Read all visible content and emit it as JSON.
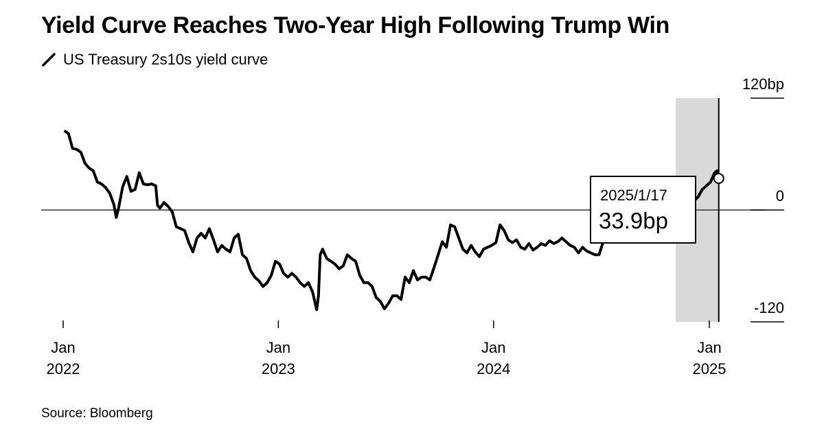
{
  "title": "Yield Curve Reaches Two-Year High Following Trump Win",
  "legend": {
    "label": "US Treasury 2s10s yield curve",
    "icon": "line-swatch-icon"
  },
  "source": "Source: Bloomberg",
  "callout": {
    "date": "2025/1/17",
    "value": "33.9bp"
  },
  "colors": {
    "line": "#000000",
    "shade": "#d9d9d9",
    "zero_line": "#333333",
    "marker_fill": "#ffffff"
  },
  "chart_data": {
    "type": "line",
    "title": "Yield Curve Reaches Two-Year High Following Trump Win",
    "series": [
      {
        "name": "US Treasury 2s10s yield curve",
        "unit": "bp",
        "points": [
          [
            "2022-01-03",
            85
          ],
          [
            "2022-01-10",
            82
          ],
          [
            "2022-01-17",
            66
          ],
          [
            "2022-01-24",
            65
          ],
          [
            "2022-01-31",
            62
          ],
          [
            "2022-02-07",
            50
          ],
          [
            "2022-02-14",
            45
          ],
          [
            "2022-02-21",
            42
          ],
          [
            "2022-02-28",
            30
          ],
          [
            "2022-03-07",
            28
          ],
          [
            "2022-03-14",
            24
          ],
          [
            "2022-03-21",
            18
          ],
          [
            "2022-03-28",
            6
          ],
          [
            "2022-04-01",
            -8
          ],
          [
            "2022-04-05",
            2
          ],
          [
            "2022-04-12",
            25
          ],
          [
            "2022-04-19",
            36
          ],
          [
            "2022-04-26",
            20
          ],
          [
            "2022-05-03",
            22
          ],
          [
            "2022-05-10",
            40
          ],
          [
            "2022-05-17",
            28
          ],
          [
            "2022-05-24",
            27
          ],
          [
            "2022-05-31",
            28
          ],
          [
            "2022-06-07",
            26
          ],
          [
            "2022-06-10",
            5
          ],
          [
            "2022-06-14",
            2
          ],
          [
            "2022-06-21",
            8
          ],
          [
            "2022-06-28",
            4
          ],
          [
            "2022-07-05",
            -2
          ],
          [
            "2022-07-12",
            -18
          ],
          [
            "2022-07-19",
            -20
          ],
          [
            "2022-07-26",
            -22
          ],
          [
            "2022-08-02",
            -35
          ],
          [
            "2022-08-09",
            -45
          ],
          [
            "2022-08-16",
            -30
          ],
          [
            "2022-08-23",
            -25
          ],
          [
            "2022-08-30",
            -30
          ],
          [
            "2022-09-06",
            -20
          ],
          [
            "2022-09-13",
            -32
          ],
          [
            "2022-09-20",
            -45
          ],
          [
            "2022-09-27",
            -38
          ],
          [
            "2022-10-04",
            -42
          ],
          [
            "2022-10-11",
            -45
          ],
          [
            "2022-10-18",
            -30
          ],
          [
            "2022-10-25",
            -26
          ],
          [
            "2022-11-01",
            -48
          ],
          [
            "2022-11-08",
            -52
          ],
          [
            "2022-11-15",
            -65
          ],
          [
            "2022-11-22",
            -72
          ],
          [
            "2022-11-29",
            -76
          ],
          [
            "2022-12-06",
            -82
          ],
          [
            "2022-12-13",
            -78
          ],
          [
            "2022-12-20",
            -70
          ],
          [
            "2022-12-27",
            -55
          ],
          [
            "2023-01-03",
            -58
          ],
          [
            "2023-01-10",
            -68
          ],
          [
            "2023-01-17",
            -72
          ],
          [
            "2023-01-24",
            -68
          ],
          [
            "2023-01-31",
            -72
          ],
          [
            "2023-02-07",
            -78
          ],
          [
            "2023-02-14",
            -82
          ],
          [
            "2023-02-21",
            -78
          ],
          [
            "2023-02-28",
            -88
          ],
          [
            "2023-03-07",
            -107
          ],
          [
            "2023-03-10",
            -92
          ],
          [
            "2023-03-13",
            -48
          ],
          [
            "2023-03-17",
            -42
          ],
          [
            "2023-03-24",
            -52
          ],
          [
            "2023-03-31",
            -55
          ],
          [
            "2023-04-07",
            -58
          ],
          [
            "2023-04-14",
            -63
          ],
          [
            "2023-04-21",
            -60
          ],
          [
            "2023-04-28",
            -48
          ],
          [
            "2023-05-05",
            -52
          ],
          [
            "2023-05-12",
            -55
          ],
          [
            "2023-05-19",
            -70
          ],
          [
            "2023-05-26",
            -78
          ],
          [
            "2023-06-02",
            -78
          ],
          [
            "2023-06-09",
            -82
          ],
          [
            "2023-06-16",
            -94
          ],
          [
            "2023-06-23",
            -98
          ],
          [
            "2023-06-30",
            -106
          ],
          [
            "2023-07-07",
            -100
          ],
          [
            "2023-07-14",
            -92
          ],
          [
            "2023-07-21",
            -92
          ],
          [
            "2023-07-28",
            -96
          ],
          [
            "2023-08-04",
            -72
          ],
          [
            "2023-08-11",
            -78
          ],
          [
            "2023-08-18",
            -65
          ],
          [
            "2023-08-25",
            -75
          ],
          [
            "2023-09-01",
            -72
          ],
          [
            "2023-09-08",
            -72
          ],
          [
            "2023-09-15",
            -75
          ],
          [
            "2023-09-22",
            -62
          ],
          [
            "2023-09-29",
            -48
          ],
          [
            "2023-10-06",
            -34
          ],
          [
            "2023-10-13",
            -40
          ],
          [
            "2023-10-20",
            -16
          ],
          [
            "2023-10-27",
            -18
          ],
          [
            "2023-11-03",
            -30
          ],
          [
            "2023-11-10",
            -42
          ],
          [
            "2023-11-17",
            -46
          ],
          [
            "2023-11-24",
            -38
          ],
          [
            "2023-12-01",
            -45
          ],
          [
            "2023-12-08",
            -50
          ],
          [
            "2023-12-15",
            -42
          ],
          [
            "2023-12-22",
            -40
          ],
          [
            "2023-12-29",
            -38
          ],
          [
            "2024-01-05",
            -35
          ],
          [
            "2024-01-12",
            -16
          ],
          [
            "2024-01-19",
            -22
          ],
          [
            "2024-01-26",
            -32
          ],
          [
            "2024-02-02",
            -35
          ],
          [
            "2024-02-09",
            -32
          ],
          [
            "2024-02-16",
            -40
          ],
          [
            "2024-02-23",
            -42
          ],
          [
            "2024-03-01",
            -36
          ],
          [
            "2024-03-08",
            -43
          ],
          [
            "2024-03-15",
            -40
          ],
          [
            "2024-03-22",
            -36
          ],
          [
            "2024-03-29",
            -38
          ],
          [
            "2024-04-05",
            -33
          ],
          [
            "2024-04-12",
            -36
          ],
          [
            "2024-04-19",
            -34
          ],
          [
            "2024-04-26",
            -30
          ],
          [
            "2024-05-03",
            -34
          ],
          [
            "2024-05-10",
            -38
          ],
          [
            "2024-05-17",
            -40
          ],
          [
            "2024-05-24",
            -46
          ],
          [
            "2024-05-31",
            -40
          ],
          [
            "2024-06-07",
            -44
          ],
          [
            "2024-06-14",
            -46
          ],
          [
            "2024-06-21",
            -48
          ],
          [
            "2024-06-28",
            -48
          ],
          [
            "2024-07-05",
            -34
          ],
          [
            "2024-07-12",
            -30
          ],
          [
            "2024-07-19",
            -22
          ],
          [
            "2024-07-26",
            -18
          ],
          [
            "2024-08-02",
            -10
          ],
          [
            "2024-08-09",
            -12
          ],
          [
            "2024-08-16",
            -14
          ],
          [
            "2024-08-23",
            -8
          ],
          [
            "2024-08-30",
            -4
          ],
          [
            "2024-09-06",
            2
          ],
          [
            "2024-09-13",
            5
          ],
          [
            "2024-09-20",
            10
          ],
          [
            "2024-09-27",
            14
          ],
          [
            "2024-10-04",
            8
          ],
          [
            "2024-10-11",
            6
          ],
          [
            "2024-10-18",
            4
          ],
          [
            "2024-10-25",
            6
          ],
          [
            "2024-11-01",
            5
          ],
          [
            "2024-11-08",
            3
          ],
          [
            "2024-11-15",
            8
          ],
          [
            "2024-11-22",
            4
          ],
          [
            "2024-11-29",
            6
          ],
          [
            "2024-12-06",
            10
          ],
          [
            "2024-12-13",
            14
          ],
          [
            "2024-12-20",
            22
          ],
          [
            "2024-12-27",
            26
          ],
          [
            "2025-01-03",
            30
          ],
          [
            "2025-01-10",
            40
          ],
          [
            "2025-01-14",
            42
          ],
          [
            "2025-01-17",
            33.9
          ]
        ]
      }
    ],
    "x_ticks": [
      {
        "date": "2022-01-01",
        "label_month": "Jan",
        "label_year": "2022"
      },
      {
        "date": "2023-01-01",
        "label_month": "Jan",
        "label_year": "2023"
      },
      {
        "date": "2024-01-01",
        "label_month": "Jan",
        "label_year": "2024"
      },
      {
        "date": "2025-01-01",
        "label_month": "Jan",
        "label_year": "2025"
      }
    ],
    "y_ticks": [
      {
        "value": 120,
        "label": "120bp"
      },
      {
        "value": 0,
        "label": "0"
      },
      {
        "value": -120,
        "label": "-120"
      }
    ],
    "xlim": [
      "2021-11-25",
      "2025-03-10"
    ],
    "ylim": [
      -120,
      120
    ],
    "shaded_range": {
      "start": "2024-11-05",
      "end": "2025-01-17"
    },
    "highlight": {
      "date": "2025-01-17",
      "value": 33.9
    },
    "xlabel": "",
    "ylabel": "",
    "grid": false,
    "legend_position": "top-left",
    "y_axis_side": "right"
  }
}
